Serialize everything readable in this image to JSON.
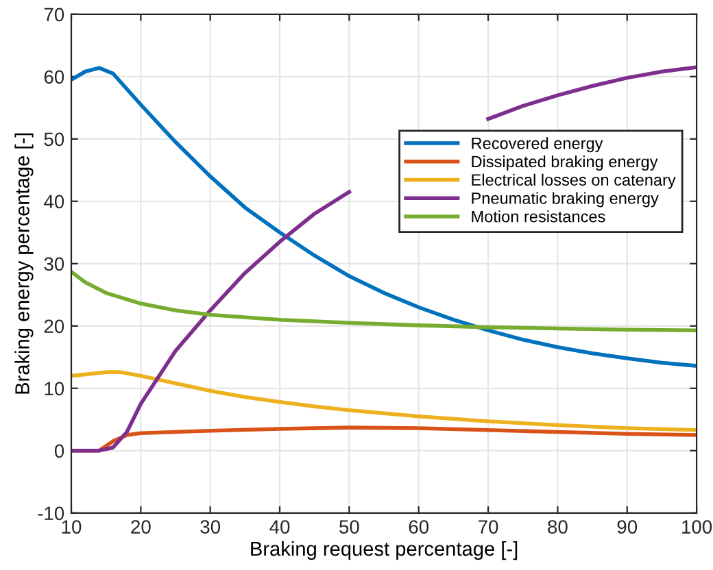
{
  "chart_data": {
    "type": "line",
    "xlabel": "Braking request percentage [-]",
    "ylabel": "Braking energy percentage [-]",
    "xlim": [
      10,
      100
    ],
    "ylim": [
      -10,
      70
    ],
    "xticks": [
      10,
      20,
      30,
      40,
      50,
      60,
      70,
      80,
      90,
      100
    ],
    "yticks": [
      -10,
      0,
      10,
      20,
      30,
      40,
      50,
      60,
      70
    ],
    "grid": true,
    "legend": "right",
    "marker": "none",
    "line_style": "solid",
    "series": [
      {
        "name": "Recovered energy",
        "color": "#0072bd",
        "x": [
          10,
          12,
          14,
          16,
          18,
          20,
          25,
          30,
          35,
          40,
          45,
          50,
          55,
          60,
          65,
          70,
          75,
          80,
          85,
          90,
          95,
          100
        ],
        "values": [
          59.5,
          60.8,
          61.4,
          60.5,
          58,
          55.5,
          49.5,
          44,
          39,
          35,
          31.3,
          28,
          25.3,
          23,
          21,
          19.3,
          17.8,
          16.6,
          15.6,
          14.8,
          14.1,
          13.6
        ]
      },
      {
        "name": "Dissipated braking energy",
        "color": "#d95319",
        "x": [
          10,
          14,
          16,
          18,
          20,
          30,
          40,
          50,
          60,
          70,
          80,
          90,
          100
        ],
        "values": [
          0,
          0,
          1.5,
          2.5,
          2.8,
          3.2,
          3.5,
          3.7,
          3.6,
          3.3,
          3.0,
          2.7,
          2.5
        ]
      },
      {
        "name": "Electrical losses on catenary",
        "color": "#edb120",
        "x": [
          10,
          15,
          17,
          20,
          25,
          30,
          35,
          40,
          45,
          50,
          60,
          70,
          80,
          90,
          100
        ],
        "values": [
          12,
          12.6,
          12.6,
          12,
          10.8,
          9.6,
          8.6,
          7.8,
          7.1,
          6.5,
          5.5,
          4.7,
          4.1,
          3.6,
          3.3
        ]
      },
      {
        "name": "Pneumatic braking energy",
        "color": "#7e2f8e",
        "x": [
          10,
          14,
          16,
          18,
          20,
          25,
          30,
          35,
          40,
          45,
          50,
          55,
          60,
          65,
          70,
          75,
          80,
          85,
          90,
          95,
          100
        ],
        "values": [
          0,
          0,
          0.5,
          3,
          7.5,
          16,
          22.5,
          28.5,
          33.5,
          38,
          41.5,
          null,
          null,
          null,
          53.2,
          55.3,
          57,
          58.5,
          59.8,
          60.8,
          61.5
        ]
      },
      {
        "name": "Motion resistances",
        "color": "#77ac30",
        "x": [
          10,
          12,
          15,
          20,
          25,
          30,
          40,
          50,
          60,
          70,
          80,
          90,
          100
        ],
        "values": [
          28.7,
          27,
          25.3,
          23.6,
          22.5,
          21.8,
          21,
          20.5,
          20.1,
          19.8,
          19.6,
          19.4,
          19.3
        ]
      }
    ]
  }
}
